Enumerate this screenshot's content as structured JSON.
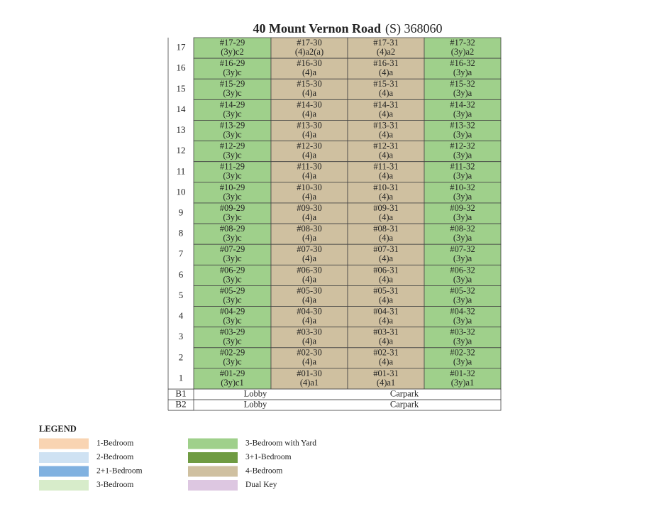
{
  "title": {
    "name": "40 Mount Vernon Road",
    "postal": "(S) 368060"
  },
  "column_colors": [
    "#9fd08b",
    "#cfc0a0",
    "#cfc0a0",
    "#9fd08b"
  ],
  "floors": [
    {
      "floor": "17",
      "units": [
        {
          "code": "#17-29",
          "type": "(3y)c2"
        },
        {
          "code": "#17-30",
          "type": "(4)a2(a)"
        },
        {
          "code": "#17-31",
          "type": "(4)a2"
        },
        {
          "code": "#17-32",
          "type": "(3y)a2"
        }
      ]
    },
    {
      "floor": "16",
      "units": [
        {
          "code": "#16-29",
          "type": "(3y)c"
        },
        {
          "code": "#16-30",
          "type": "(4)a"
        },
        {
          "code": "#16-31",
          "type": "(4)a"
        },
        {
          "code": "#16-32",
          "type": "(3y)a"
        }
      ]
    },
    {
      "floor": "15",
      "units": [
        {
          "code": "#15-29",
          "type": "(3y)c"
        },
        {
          "code": "#15-30",
          "type": "(4)a"
        },
        {
          "code": "#15-31",
          "type": "(4)a"
        },
        {
          "code": "#15-32",
          "type": "(3y)a"
        }
      ]
    },
    {
      "floor": "14",
      "units": [
        {
          "code": "#14-29",
          "type": "(3y)c"
        },
        {
          "code": "#14-30",
          "type": "(4)a"
        },
        {
          "code": "#14-31",
          "type": "(4)a"
        },
        {
          "code": "#14-32",
          "type": "(3y)a"
        }
      ]
    },
    {
      "floor": "13",
      "units": [
        {
          "code": "#13-29",
          "type": "(3y)c"
        },
        {
          "code": "#13-30",
          "type": "(4)a"
        },
        {
          "code": "#13-31",
          "type": "(4)a"
        },
        {
          "code": "#13-32",
          "type": "(3y)a"
        }
      ]
    },
    {
      "floor": "12",
      "units": [
        {
          "code": "#12-29",
          "type": "(3y)c"
        },
        {
          "code": "#12-30",
          "type": "(4)a"
        },
        {
          "code": "#12-31",
          "type": "(4)a"
        },
        {
          "code": "#12-32",
          "type": "(3y)a"
        }
      ]
    },
    {
      "floor": "11",
      "units": [
        {
          "code": "#11-29",
          "type": "(3y)c"
        },
        {
          "code": "#11-30",
          "type": "(4)a"
        },
        {
          "code": "#11-31",
          "type": "(4)a"
        },
        {
          "code": "#11-32",
          "type": "(3y)a"
        }
      ]
    },
    {
      "floor": "10",
      "units": [
        {
          "code": "#10-29",
          "type": "(3y)c"
        },
        {
          "code": "#10-30",
          "type": "(4)a"
        },
        {
          "code": "#10-31",
          "type": "(4)a"
        },
        {
          "code": "#10-32",
          "type": "(3y)a"
        }
      ]
    },
    {
      "floor": "9",
      "units": [
        {
          "code": "#09-29",
          "type": "(3y)c"
        },
        {
          "code": "#09-30",
          "type": "(4)a"
        },
        {
          "code": "#09-31",
          "type": "(4)a"
        },
        {
          "code": "#09-32",
          "type": "(3y)a"
        }
      ]
    },
    {
      "floor": "8",
      "units": [
        {
          "code": "#08-29",
          "type": "(3y)c"
        },
        {
          "code": "#08-30",
          "type": "(4)a"
        },
        {
          "code": "#08-31",
          "type": "(4)a"
        },
        {
          "code": "#08-32",
          "type": "(3y)a"
        }
      ]
    },
    {
      "floor": "7",
      "units": [
        {
          "code": "#07-29",
          "type": "(3y)c"
        },
        {
          "code": "#07-30",
          "type": "(4)a"
        },
        {
          "code": "#07-31",
          "type": "(4)a"
        },
        {
          "code": "#07-32",
          "type": "(3y)a"
        }
      ]
    },
    {
      "floor": "6",
      "units": [
        {
          "code": "#06-29",
          "type": "(3y)c"
        },
        {
          "code": "#06-30",
          "type": "(4)a"
        },
        {
          "code": "#06-31",
          "type": "(4)a"
        },
        {
          "code": "#06-32",
          "type": "(3y)a"
        }
      ]
    },
    {
      "floor": "5",
      "units": [
        {
          "code": "#05-29",
          "type": "(3y)c"
        },
        {
          "code": "#05-30",
          "type": "(4)a"
        },
        {
          "code": "#05-31",
          "type": "(4)a"
        },
        {
          "code": "#05-32",
          "type": "(3y)a"
        }
      ]
    },
    {
      "floor": "4",
      "units": [
        {
          "code": "#04-29",
          "type": "(3y)c"
        },
        {
          "code": "#04-30",
          "type": "(4)a"
        },
        {
          "code": "#04-31",
          "type": "(4)a"
        },
        {
          "code": "#04-32",
          "type": "(3y)a"
        }
      ]
    },
    {
      "floor": "3",
      "units": [
        {
          "code": "#03-29",
          "type": "(3y)c"
        },
        {
          "code": "#03-30",
          "type": "(4)a"
        },
        {
          "code": "#03-31",
          "type": "(4)a"
        },
        {
          "code": "#03-32",
          "type": "(3y)a"
        }
      ]
    },
    {
      "floor": "2",
      "units": [
        {
          "code": "#02-29",
          "type": "(3y)c"
        },
        {
          "code": "#02-30",
          "type": "(4)a"
        },
        {
          "code": "#02-31",
          "type": "(4)a"
        },
        {
          "code": "#02-32",
          "type": "(3y)a"
        }
      ]
    },
    {
      "floor": "1",
      "units": [
        {
          "code": "#01-29",
          "type": "(3y)c1"
        },
        {
          "code": "#01-30",
          "type": "(4)a1"
        },
        {
          "code": "#01-31",
          "type": "(4)a1"
        },
        {
          "code": "#01-32",
          "type": "(3y)a1"
        }
      ]
    }
  ],
  "basements": [
    {
      "floor": "B1",
      "areas": [
        "Lobby",
        "Carpark"
      ]
    },
    {
      "floor": "B2",
      "areas": [
        "Lobby",
        "Carpark"
      ]
    }
  ],
  "legend": {
    "title": "LEGEND",
    "items": [
      {
        "label": "1-Bedroom",
        "color": "#f9d4b2"
      },
      {
        "label": "2-Bedroom",
        "color": "#cfe2f3"
      },
      {
        "label": "2+1-Bedroom",
        "color": "#80b1e0"
      },
      {
        "label": "3-Bedroom",
        "color": "#d7ecca"
      },
      {
        "label": "3-Bedroom with Yard",
        "color": "#9fd08b"
      },
      {
        "label": "3+1-Bedroom",
        "color": "#6f9b42"
      },
      {
        "label": "4-Bedroom",
        "color": "#cfc0a0"
      },
      {
        "label": "Dual Key",
        "color": "#ddc7e1"
      }
    ]
  }
}
